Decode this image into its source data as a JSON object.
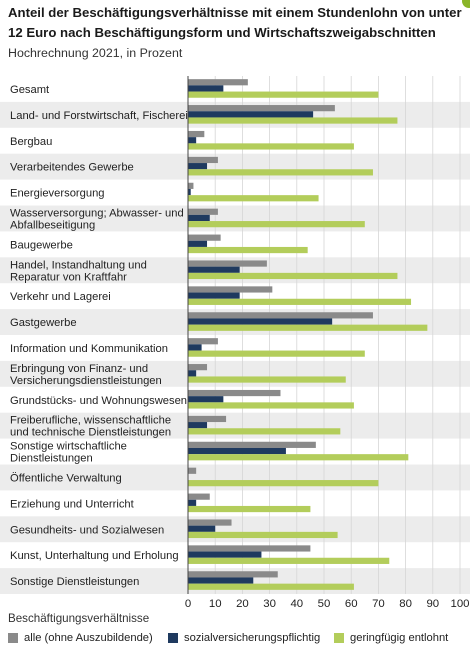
{
  "header": {
    "title": "Anteil der Beschäftigungsverhältnisse mit einem Stundenlohn von unter 12 Euro nach Beschäftigungsform und Wirtschaftszweigabschnitten",
    "subtitle": "Hochrechnung 2021, in Prozent"
  },
  "legend": {
    "title": "Beschäftigungsverhältnisse"
  },
  "chart_data": {
    "type": "bar",
    "orientation": "horizontal",
    "xlim": [
      0,
      100
    ],
    "xticks": [
      0,
      10,
      20,
      30,
      40,
      50,
      60,
      70,
      80,
      90,
      100
    ],
    "grid": "vertical",
    "legend_position": "bottom",
    "categories": [
      "Gesamt",
      "Land- und Forstwirtschaft, Fischerei",
      "Bergbau",
      "Verarbeitendes Gewerbe",
      "Energieversorgung",
      "Wasserversorgung; Abwasser- und Abfallbeseitigung",
      "Baugewerbe",
      "Handel, Instandhaltung und Reparatur von Kraftfahr",
      "Verkehr und Lagerei",
      "Gastgewerbe",
      "Information und Kommunikation",
      "Erbringung von Finanz- und Versicherungsdienstleistungen",
      "Grundstücks- und Wohnungswesen",
      "Freiberufliche, wissenschaftliche und technische Dienstleistungen",
      "Sonstige wirtschaftliche Dienstleistungen",
      "Öffentliche Verwaltung",
      "Erziehung und Unterricht",
      "Gesundheits- und Sozialwesen",
      "Kunst, Unterhaltung und Erholung",
      "Sonstige Dienstleistungen"
    ],
    "category_lines": [
      [
        "Gesamt"
      ],
      [
        "Land- und Forstwirtschaft, Fischerei"
      ],
      [
        "Bergbau"
      ],
      [
        "Verarbeitendes Gewerbe"
      ],
      [
        "Energieversorgung"
      ],
      [
        "Wasserversorgung; Abwasser- und",
        "Abfallbeseitigung"
      ],
      [
        "Baugewerbe"
      ],
      [
        "Handel, Instandhaltung und",
        "Reparatur von Kraftfahr"
      ],
      [
        "Verkehr und Lagerei"
      ],
      [
        "Gastgewerbe"
      ],
      [
        "Information und Kommunikation"
      ],
      [
        "Erbringung von Finanz- und",
        "Versicherungsdienstleistungen"
      ],
      [
        "Grundstücks- und Wohnungswesen"
      ],
      [
        "Freiberufliche, wissenschaftliche",
        "und technische Dienstleistungen"
      ],
      [
        "Sonstige wirtschaftliche",
        "Dienstleistungen"
      ],
      [
        "Öffentliche Verwaltung"
      ],
      [
        "Erziehung und Unterricht"
      ],
      [
        "Gesundheits- und Sozialwesen"
      ],
      [
        "Kunst, Unterhaltung und Erholung"
      ],
      [
        "Sonstige Dienstleistungen"
      ]
    ],
    "series": [
      {
        "name": "alle (ohne Auszubildende)",
        "color": "#8a8a8a",
        "values": [
          22,
          54,
          6,
          11,
          2,
          11,
          12,
          29,
          31,
          68,
          11,
          7,
          34,
          14,
          47,
          3,
          8,
          16,
          45,
          33
        ]
      },
      {
        "name": "sozialversicherungspflichtig",
        "color": "#1f3a5f",
        "values": [
          13,
          46,
          3,
          7,
          1,
          8,
          7,
          19,
          19,
          53,
          5,
          3,
          13,
          7,
          36,
          0,
          3,
          10,
          27,
          24
        ]
      },
      {
        "name": "geringfügig entlohnt",
        "color": "#b3cd5b",
        "values": [
          70,
          77,
          61,
          68,
          48,
          65,
          44,
          77,
          82,
          88,
          65,
          58,
          61,
          56,
          81,
          70,
          45,
          55,
          74,
          61
        ]
      }
    ]
  }
}
